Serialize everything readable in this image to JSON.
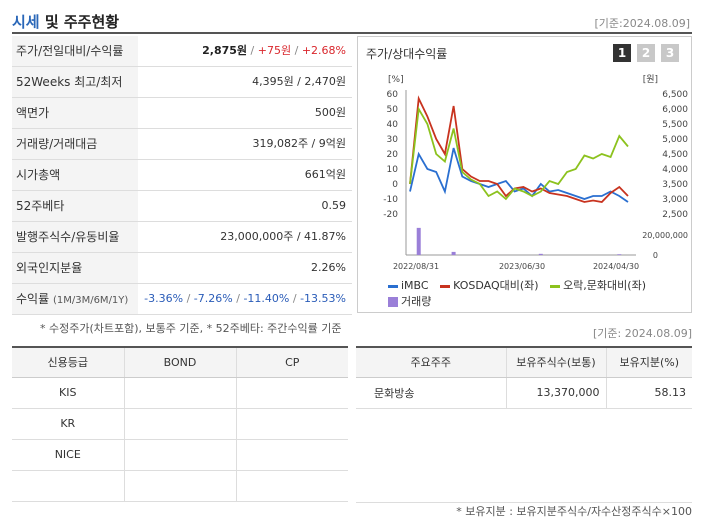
{
  "header": {
    "title_accent": "시세",
    "title_rest": " 및 주주현황",
    "as_of": "[기준:2024.08.09]"
  },
  "info_rows": [
    {
      "label": "주가/전일대비/수익률",
      "price": "2,875원",
      "change": "+75원",
      "pct": "+2.68%"
    },
    {
      "label": "52Weeks 최고/최저",
      "value": "4,395원 / 2,470원"
    },
    {
      "label": "액면가",
      "value": "500원"
    },
    {
      "label": "거래량/거래대금",
      "value": "319,082주 / 9억원"
    },
    {
      "label": "시가총액",
      "value": "661억원"
    },
    {
      "label": "52주베타",
      "value": "0.59"
    },
    {
      "label": "발행주식수/유동비율",
      "value": "23,000,000주 / 41.87%"
    },
    {
      "label": "외국인지분율",
      "value": "2.26%"
    },
    {
      "label": "수익률",
      "label_sub": "(1M/3M/6M/1Y)",
      "r1": "-3.36%",
      "r2": "-7.26%",
      "r3": "-11.40%",
      "r4": "-13.53%"
    }
  ],
  "chart": {
    "title": "주가/상대수익률",
    "pages": [
      "1",
      "2",
      "3"
    ],
    "left_unit": "[%]",
    "right_unit": "[원]",
    "volume_tick": "20,000,000",
    "volume_zero": "0",
    "legend": [
      "iMBC",
      "KOSDAQ대비(좌)",
      "오락,문화대비(좌)",
      "거래량"
    ]
  },
  "chart_data": {
    "type": "line",
    "x_labels": [
      "2022/08/31",
      "2023/06/30",
      "2024/04/30"
    ],
    "left_axis": {
      "min": -20,
      "max": 60,
      "ticks": [
        "60",
        "50",
        "40",
        "30",
        "20",
        "10",
        "0",
        "-10",
        "-20"
      ]
    },
    "right_axis": {
      "min": 3000,
      "max": 6500,
      "ticks": [
        "6,500",
        "6,000",
        "5,500",
        "5,000",
        "4,500",
        "4,000",
        "3,500",
        "3,000",
        "2,500"
      ]
    },
    "series": [
      {
        "name": "iMBC",
        "color": "#2a6fd0",
        "values": [
          -5,
          20,
          10,
          8,
          -5,
          24,
          5,
          2,
          0,
          -2,
          0,
          2,
          -5,
          -3,
          -8,
          0,
          -5,
          -4,
          -6,
          -8,
          -10,
          -8,
          -8,
          -5,
          -8,
          -12
        ]
      },
      {
        "name": "KOSDAQ대비(좌)",
        "color": "#c8331f",
        "values": [
          0,
          57,
          45,
          30,
          20,
          52,
          10,
          5,
          2,
          2,
          0,
          -8,
          -3,
          -2,
          -5,
          -3,
          -6,
          -7,
          -8,
          -10,
          -12,
          -11,
          -12,
          -6,
          -2,
          -8
        ]
      },
      {
        "name": "오락,문화대비(좌)",
        "color": "#8cc21e",
        "values": [
          0,
          50,
          40,
          20,
          15,
          37,
          8,
          3,
          0,
          -8,
          -5,
          -10,
          -3,
          -5,
          -8,
          -5,
          2,
          0,
          8,
          10,
          19,
          17,
          20,
          18,
          32,
          25
        ]
      }
    ],
    "volume": {
      "color": "#9a7fd8",
      "max": 40000000,
      "values": [
        0,
        35000000,
        0,
        0,
        0,
        4000000,
        0,
        0,
        0,
        0,
        0,
        0,
        0,
        0,
        0,
        1500000,
        0,
        0,
        0,
        0,
        0,
        0,
        0,
        0,
        1000000,
        0
      ]
    }
  },
  "notes": "* 수정주가(차트포함), 보통주 기준, * 52주베타: 주간수익률 기준",
  "as_of2": "[기준: 2024.08.09]",
  "credit_table": {
    "headers": [
      "신용등급",
      "BOND",
      "CP"
    ],
    "rows": [
      [
        "KIS",
        "",
        ""
      ],
      [
        "KR",
        "",
        ""
      ],
      [
        "NICE",
        "",
        ""
      ],
      [
        "",
        "",
        ""
      ]
    ]
  },
  "holders_table": {
    "headers": [
      "주요주주",
      "보유주식수(보통)",
      "보유지분(%)"
    ],
    "rows": [
      [
        "문화방송",
        "13,370,000",
        "58.13"
      ]
    ]
  },
  "footnote": "* 보유지분 : 보유지분주식수/자수산정주식수×100"
}
